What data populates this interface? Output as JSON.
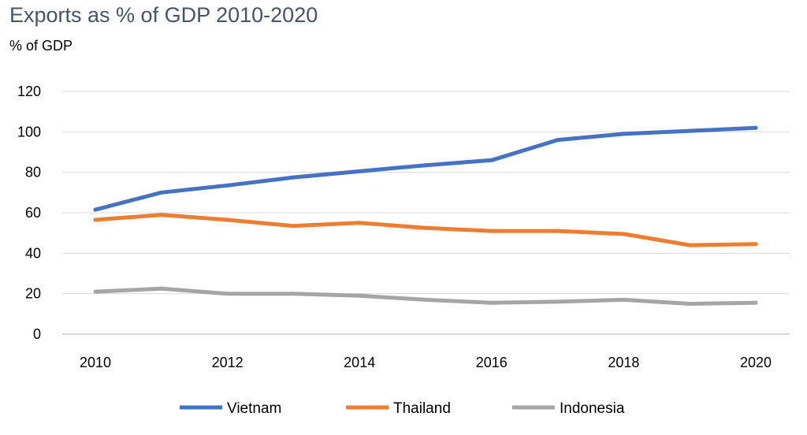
{
  "chart_data": {
    "type": "line",
    "title": "Exports as % of GDP 2010-2020",
    "ylabel": "% of GDP",
    "xlabel": "",
    "x": [
      2010,
      2011,
      2012,
      2013,
      2014,
      2015,
      2016,
      2017,
      2018,
      2019,
      2020
    ],
    "x_tick_labels": [
      "2010",
      "2012",
      "2014",
      "2016",
      "2018",
      "2020"
    ],
    "y_tick_labels": [
      "0",
      "20",
      "40",
      "60",
      "80",
      "100",
      "120"
    ],
    "xlim": [
      2010,
      2020
    ],
    "ylim": [
      0,
      120
    ],
    "grid": "horizontal",
    "legend_position": "bottom",
    "series": [
      {
        "name": "Vietnam",
        "color": "#4472c4",
        "values": [
          61.5,
          70,
          73.5,
          77.5,
          80.5,
          83.5,
          86,
          96,
          99,
          100.5,
          102
        ]
      },
      {
        "name": "Thailand",
        "color": "#ed7d31",
        "values": [
          56.5,
          59,
          56.5,
          53.5,
          55,
          52.5,
          51,
          51,
          49.5,
          44,
          44.5
        ]
      },
      {
        "name": "Indonesia",
        "color": "#a5a5a5",
        "values": [
          21,
          22.5,
          20,
          20,
          19,
          17,
          15.5,
          16,
          17,
          15,
          15.5
        ]
      }
    ]
  }
}
